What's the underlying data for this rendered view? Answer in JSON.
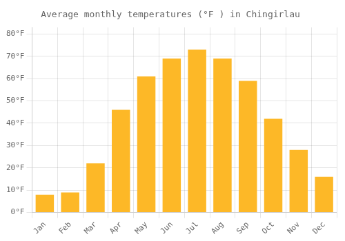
{
  "chart_data": {
    "type": "bar",
    "title": "Average monthly temperatures (°F ) in Chingirlau",
    "categories": [
      "Jan",
      "Feb",
      "Mar",
      "Apr",
      "May",
      "Jun",
      "Jul",
      "Aug",
      "Sep",
      "Oct",
      "Nov",
      "Dec"
    ],
    "values": [
      8,
      9,
      22,
      46,
      61,
      69,
      73,
      69,
      59,
      42,
      28,
      16
    ],
    "color": "#FDB827",
    "ylim": [
      0,
      83
    ],
    "yticks": [
      {
        "value": 0,
        "label": "0°F"
      },
      {
        "value": 10,
        "label": "10°F"
      },
      {
        "value": 20,
        "label": "20°F"
      },
      {
        "value": 30,
        "label": "30°F"
      },
      {
        "value": 40,
        "label": "40°F"
      },
      {
        "value": 50,
        "label": "50°F"
      },
      {
        "value": 60,
        "label": "60°F"
      },
      {
        "value": 70,
        "label": "70°F"
      },
      {
        "value": 80,
        "label": "80°F"
      }
    ],
    "grid": true
  }
}
